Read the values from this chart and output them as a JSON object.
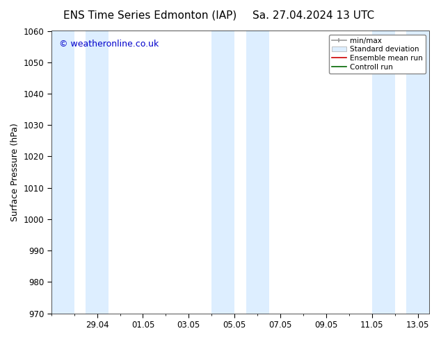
{
  "title_left": "ENS Time Series Edmonton (IAP)",
  "title_right": "Sa. 27.04.2024 13 UTC",
  "ylabel": "Surface Pressure (hPa)",
  "ylim": [
    970,
    1060
  ],
  "yticks": [
    970,
    980,
    990,
    1000,
    1010,
    1020,
    1030,
    1040,
    1050,
    1060
  ],
  "xtick_labels": [
    "29.04",
    "01.05",
    "03.05",
    "05.05",
    "07.05",
    "09.05",
    "11.05",
    "13.05"
  ],
  "xtick_positions": [
    2,
    4,
    6,
    8,
    10,
    12,
    14,
    16
  ],
  "shaded_bands": [
    {
      "x_start": 0,
      "x_end": 1
    },
    {
      "x_start": 1.5,
      "x_end": 2.5
    },
    {
      "x_start": 7,
      "x_end": 8
    },
    {
      "x_start": 8.5,
      "x_end": 9.5
    },
    {
      "x_start": 14,
      "x_end": 15
    },
    {
      "x_start": 15.5,
      "x_end": 16.5
    }
  ],
  "band_color": "#ddeeff",
  "copyright_text": "© weatheronline.co.uk",
  "copyright_color": "#0000cc",
  "background_color": "#ffffff",
  "title_fontsize": 11,
  "axis_label_fontsize": 9,
  "tick_fontsize": 8.5,
  "xlim_left": 0,
  "xlim_right": 16.5
}
